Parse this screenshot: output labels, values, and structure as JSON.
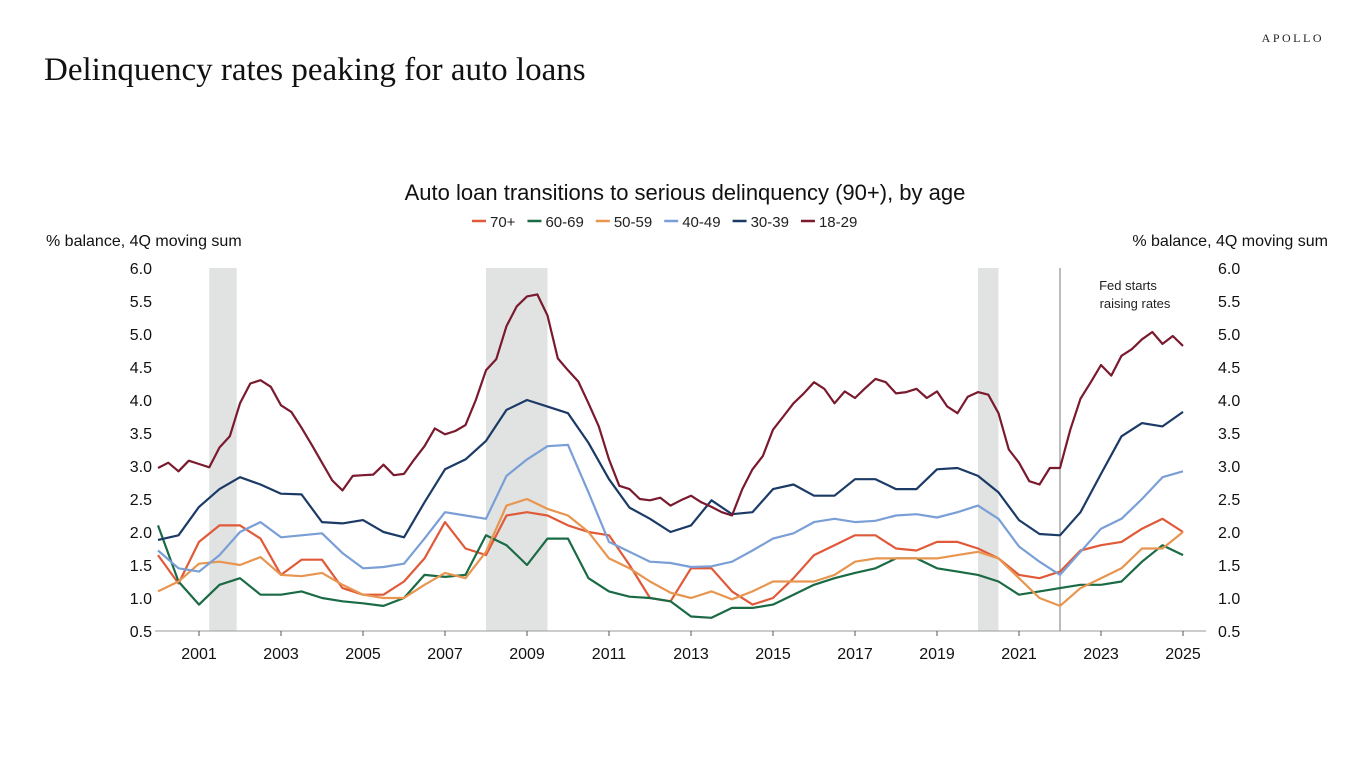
{
  "header": {
    "title": "Delinquency rates peaking for auto loans",
    "logo": "APOLLO"
  },
  "chart_data": {
    "type": "line",
    "title": "Auto loan transitions to serious delinquency (90+), by age",
    "ylabel_left": "% balance, 4Q moving sum",
    "ylabel_right": "% balance, 4Q moving sum",
    "ylim": [
      0.5,
      6.0
    ],
    "xlim": [
      2000,
      2025.5
    ],
    "yticks": [
      "0.5",
      "1.0",
      "1.5",
      "2.0",
      "2.5",
      "3.0",
      "3.5",
      "4.0",
      "4.5",
      "5.0",
      "5.5",
      "6.0"
    ],
    "xticks": [
      "2001",
      "2003",
      "2005",
      "2007",
      "2009",
      "2011",
      "2013",
      "2015",
      "2017",
      "2019",
      "2021",
      "2023",
      "2025"
    ],
    "legend_position": "top-center",
    "recessions": [
      [
        2001.25,
        2001.92
      ],
      [
        2008.0,
        2009.5
      ],
      [
        2020.0,
        2020.5
      ]
    ],
    "annotation": {
      "x": 2022.0,
      "line1": "Fed starts",
      "line2": "raising rates"
    },
    "series": [
      {
        "name": "70+",
        "color": "#e05a3a",
        "start": 2000,
        "step": 0.5,
        "values": [
          1.65,
          1.22,
          1.85,
          2.1,
          2.1,
          1.9,
          1.35,
          1.58,
          1.58,
          1.15,
          1.05,
          1.05,
          1.25,
          1.6,
          2.15,
          1.75,
          1.65,
          2.25,
          2.3,
          2.25,
          2.1,
          2.0,
          1.95,
          1.5,
          1.0,
          0.95,
          1.45,
          1.45,
          1.1,
          0.9,
          1.0,
          1.3,
          1.65,
          1.8,
          1.95,
          1.95,
          1.75,
          1.72,
          1.85,
          1.85,
          1.75,
          1.6,
          1.35,
          1.3,
          1.4,
          1.72,
          1.8,
          1.85,
          2.05,
          2.2,
          2.0
        ]
      },
      {
        "name": "60-69",
        "color": "#1a6b45",
        "start": 2000,
        "step": 0.5,
        "values": [
          2.1,
          1.25,
          0.9,
          1.2,
          1.3,
          1.05,
          1.05,
          1.1,
          1.0,
          0.95,
          0.92,
          0.88,
          1.0,
          1.35,
          1.32,
          1.35,
          1.95,
          1.8,
          1.5,
          1.9,
          1.9,
          1.3,
          1.1,
          1.02,
          1.0,
          0.95,
          0.72,
          0.7,
          0.85,
          0.85,
          0.9,
          1.05,
          1.2,
          1.3,
          1.38,
          1.45,
          1.6,
          1.6,
          1.45,
          1.4,
          1.35,
          1.25,
          1.05,
          1.1,
          1.15,
          1.2,
          1.2,
          1.25,
          1.55,
          1.8,
          1.65
        ]
      },
      {
        "name": "50-59",
        "color": "#e8954f",
        "start": 2000,
        "step": 0.5,
        "values": [
          1.1,
          1.25,
          1.52,
          1.55,
          1.5,
          1.62,
          1.35,
          1.33,
          1.38,
          1.2,
          1.05,
          1.0,
          1.0,
          1.2,
          1.38,
          1.3,
          1.7,
          2.4,
          2.5,
          2.35,
          2.25,
          2.0,
          1.6,
          1.45,
          1.25,
          1.08,
          1.0,
          1.1,
          0.98,
          1.1,
          1.25,
          1.25,
          1.25,
          1.35,
          1.55,
          1.6,
          1.6,
          1.6,
          1.6,
          1.65,
          1.7,
          1.6,
          1.3,
          1.0,
          0.88,
          1.15,
          1.3,
          1.45,
          1.75,
          1.75,
          2.0
        ]
      },
      {
        "name": "40-49",
        "color": "#7a9fd6",
        "start": 2000,
        "step": 0.5,
        "values": [
          1.72,
          1.45,
          1.4,
          1.65,
          2.0,
          2.15,
          1.92,
          1.95,
          1.98,
          1.68,
          1.45,
          1.47,
          1.52,
          1.9,
          2.3,
          2.25,
          2.2,
          2.85,
          3.1,
          3.3,
          3.32,
          2.6,
          1.85,
          1.7,
          1.55,
          1.53,
          1.47,
          1.48,
          1.55,
          1.72,
          1.9,
          1.98,
          2.15,
          2.2,
          2.15,
          2.17,
          2.25,
          2.27,
          2.22,
          2.3,
          2.4,
          2.2,
          1.78,
          1.55,
          1.35,
          1.7,
          2.05,
          2.2,
          2.5,
          2.83,
          2.92
        ]
      },
      {
        "name": "30-39",
        "color": "#1b3a66",
        "start": 2000,
        "step": 0.5,
        "values": [
          1.88,
          1.95,
          2.38,
          2.65,
          2.83,
          2.72,
          2.58,
          2.57,
          2.15,
          2.13,
          2.18,
          2.0,
          1.92,
          2.45,
          2.95,
          3.1,
          3.38,
          3.85,
          4.0,
          3.9,
          3.8,
          3.35,
          2.8,
          2.37,
          2.2,
          2.0,
          2.1,
          2.48,
          2.27,
          2.3,
          2.65,
          2.72,
          2.55,
          2.55,
          2.8,
          2.8,
          2.65,
          2.65,
          2.95,
          2.97,
          2.85,
          2.6,
          2.18,
          1.97,
          1.95,
          2.3,
          2.88,
          3.45,
          3.65,
          3.6,
          3.82
        ]
      },
      {
        "name": "18-29",
        "color": "#7a1a2e",
        "start": 2000,
        "step": 0.25,
        "values": [
          2.97,
          3.05,
          2.92,
          3.08,
          3.03,
          2.98,
          3.28,
          3.45,
          3.95,
          4.25,
          4.3,
          4.2,
          3.92,
          3.82,
          3.58,
          3.32,
          3.05,
          2.78,
          2.63,
          2.85,
          2.86,
          2.87,
          3.02,
          2.86,
          2.88,
          3.1,
          3.3,
          3.57,
          3.48,
          3.53,
          3.62,
          4.0,
          4.45,
          4.62,
          5.12,
          5.42,
          5.57,
          5.6,
          5.28,
          4.63,
          4.45,
          4.28,
          3.95,
          3.6,
          3.1,
          2.7,
          2.65,
          2.5,
          2.48,
          2.52,
          2.4,
          2.48,
          2.55,
          2.45,
          2.38,
          2.3,
          2.25,
          2.65,
          2.95,
          3.15,
          3.55,
          3.75,
          3.95,
          4.1,
          4.27,
          4.17,
          3.95,
          4.13,
          4.03,
          4.18,
          4.32,
          4.27,
          4.1,
          4.12,
          4.17,
          4.03,
          4.13,
          3.9,
          3.8,
          4.05,
          4.12,
          4.08,
          3.8,
          3.25,
          3.05,
          2.77,
          2.72,
          2.97,
          2.97,
          3.55,
          4.02,
          4.27,
          4.53,
          4.37,
          4.67,
          4.77,
          4.92,
          5.03,
          4.85,
          4.97,
          4.82
        ]
      }
    ]
  }
}
